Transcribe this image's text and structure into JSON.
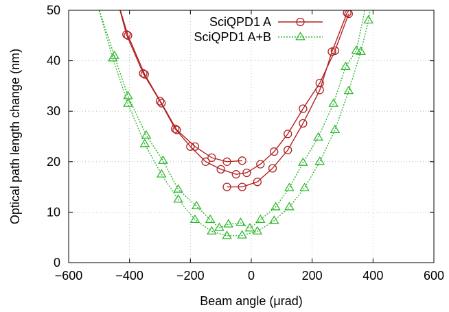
{
  "chart_data": {
    "type": "line",
    "xlabel": "Beam angle (μrad)",
    "ylabel": "Optical path length change (nm)",
    "xlim": [
      -600,
      600
    ],
    "ylim": [
      0,
      50
    ],
    "xticks": [
      -600,
      -400,
      -200,
      0,
      200,
      400,
      600
    ],
    "yticks": [
      0,
      10,
      20,
      30,
      40,
      50
    ],
    "xtick_labels": [
      "−600",
      "−400",
      "−200",
      "0",
      "200",
      "400",
      "600"
    ],
    "ytick_labels": [
      "0",
      "10",
      "20",
      "30",
      "40",
      "50"
    ],
    "grid": true,
    "legend_position": "top-center",
    "series": [
      {
        "name": "SciQPD1 A",
        "color": "#b22222",
        "marker": "circle",
        "line_style": "solid",
        "curves": [
          [
            [
              -440,
              52
            ],
            [
              -410,
              45.2
            ],
            [
              -355,
              37.5
            ],
            [
              -300,
              32
            ],
            [
              -250,
              26.5
            ],
            [
              -200,
              23
            ],
            [
              -150,
              20
            ],
            [
              -100,
              18.5
            ],
            [
              -50,
              17.5
            ],
            [
              -15,
              17.8
            ],
            [
              30,
              19.5
            ],
            [
              75,
              22
            ],
            [
              120,
              25.5
            ],
            [
              170,
              30.5
            ],
            [
              225,
              35.6
            ],
            [
              275,
              42
            ],
            [
              320,
              49.3
            ]
          ],
          [
            [
              -440,
              52
            ],
            [
              -405,
              45
            ],
            [
              -350,
              37.3
            ],
            [
              -295,
              31.6
            ],
            [
              -245,
              26.3
            ],
            [
              -185,
              23
            ],
            [
              -130,
              20.8
            ],
            [
              -80,
              20
            ],
            [
              -30,
              20.2
            ]
          ],
          [
            [
              -80,
              15
            ],
            [
              -30,
              15
            ],
            [
              20,
              16
            ],
            [
              70,
              18.7
            ],
            [
              120,
              22.3
            ],
            [
              170,
              27.6
            ],
            [
              225,
              34.2
            ],
            [
              265,
              41.8
            ],
            [
              315,
              49.5
            ],
            [
              345,
              52
            ]
          ]
        ]
      },
      {
        "name": "SciQPD1 A+B",
        "color": "#2eb82e",
        "marker": "triangle",
        "line_style": "dotted",
        "curves": [
          [
            [
              -510,
              52
            ],
            [
              -455,
              40.5
            ],
            [
              -405,
              31.5
            ],
            [
              -350,
              23.5
            ],
            [
              -295,
              17.5
            ],
            [
              -240,
              12.5
            ],
            [
              -185,
              8.5
            ],
            [
              -130,
              6.2
            ],
            [
              -80,
              5.3
            ],
            [
              -30,
              5.4
            ],
            [
              20,
              6.2
            ],
            [
              75,
              8.3
            ],
            [
              125,
              11.0
            ],
            [
              175,
              14.8
            ],
            [
              225,
              20
            ],
            [
              275,
              26.3
            ],
            [
              320,
              34
            ],
            [
              360,
              41.8
            ],
            [
              385,
              48
            ],
            [
              395,
              52
            ]
          ],
          [
            [
              -510,
              52
            ],
            [
              -450,
              41
            ],
            [
              -405,
              33
            ],
            [
              -345,
              25.2
            ],
            [
              -290,
              20.2
            ],
            [
              -240,
              14.5
            ],
            [
              -180,
              11.2
            ],
            [
              -135,
              8.5
            ],
            [
              -105,
              6.9
            ],
            [
              -75,
              7.6
            ],
            [
              -35,
              7.9
            ],
            [
              -5,
              6.8
            ],
            [
              30,
              8.5
            ],
            [
              80,
              11
            ],
            [
              125,
              14.8
            ],
            [
              170,
              19.8
            ],
            [
              220,
              24.8
            ],
            [
              270,
              31.5
            ],
            [
              310,
              38.8
            ],
            [
              345,
              42
            ],
            [
              380,
              52
            ]
          ]
        ]
      }
    ]
  }
}
